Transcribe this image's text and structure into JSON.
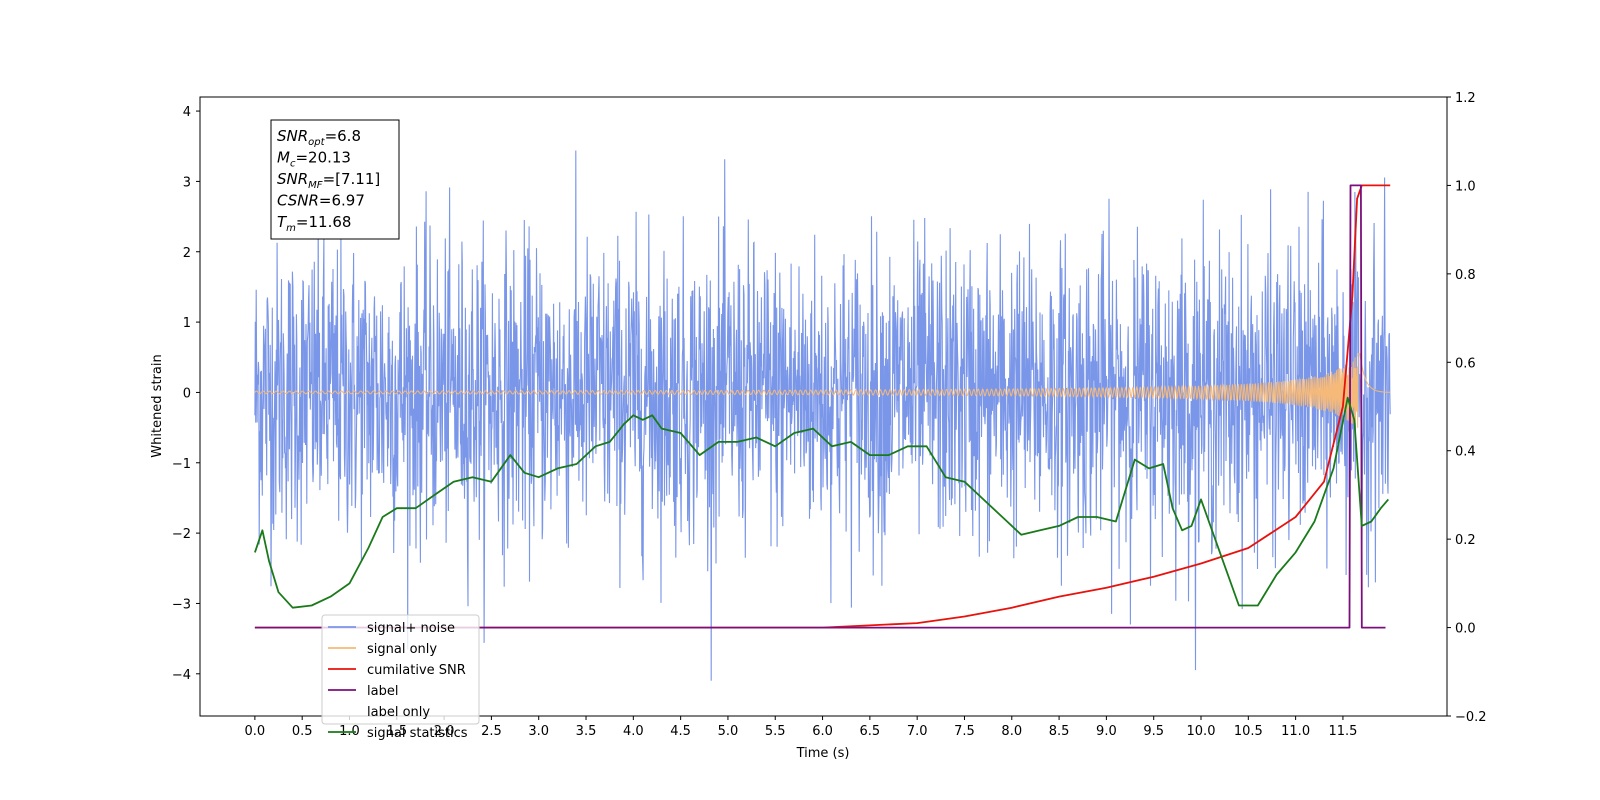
{
  "chart_data": {
    "type": "line",
    "xlabel": "Time (s)",
    "ylabel": "Whitened strain",
    "xlim": [
      -0.58,
      12.6
    ],
    "ylim": [
      -4.6,
      4.2
    ],
    "y2lim": [
      -0.2,
      1.2
    ],
    "x_ticks": [
      "0.0",
      "0.5",
      "1.0",
      "1.5",
      "2.0",
      "2.5",
      "3.0",
      "3.5",
      "4.0",
      "4.5",
      "5.0",
      "5.5",
      "6.0",
      "6.5",
      "7.0",
      "7.5",
      "8.0",
      "8.5",
      "9.0",
      "9.5",
      "10.0",
      "10.5",
      "11.0",
      "11.5"
    ],
    "y_ticks": [
      "4",
      "3",
      "2",
      "1",
      "0",
      "−1",
      "−2",
      "−3",
      "−4"
    ],
    "y2_ticks": [
      "1.2",
      "1.0",
      "0.8",
      "0.6",
      "0.4",
      "0.2",
      "0.0",
      "−0.2"
    ],
    "legend_position": "lower-left",
    "annotation": {
      "lines": [
        {
          "symbol": "SNR",
          "sub": "opt",
          "value": "=6.8"
        },
        {
          "symbol": "M",
          "sub": "c",
          "value": "=20.13"
        },
        {
          "symbol": "SNR",
          "sub": "MF",
          "value": "=[7.11]"
        },
        {
          "symbol": "CSNR",
          "sub": "",
          "value": "=6.97"
        },
        {
          "symbol": "T",
          "sub": "m",
          "value": "=11.68"
        }
      ]
    },
    "series": [
      {
        "name": "signal+ noise",
        "axis": "left",
        "color": "#7a96e8",
        "style": "dense noise, approx. gaussian, std ≈ 1.05, peaks to ±3.9",
        "x_range": [
          0.0,
          12.0
        ]
      },
      {
        "name": "signal only",
        "axis": "left",
        "color": "#f5b97a",
        "style": "chirp, amplitude grows to ≈ 0.6 near 11.6 s",
        "x_range": [
          0.0,
          12.0
        ]
      },
      {
        "name": "cumilative SNR",
        "axis": "right",
        "color": "#e8120c",
        "x": [
          0.0,
          6.0,
          7.0,
          7.5,
          8.0,
          8.5,
          9.0,
          9.5,
          10.0,
          10.5,
          11.0,
          11.3,
          11.5,
          11.6,
          11.65,
          11.7,
          12.0
        ],
        "values": [
          0.0,
          0.0,
          0.01,
          0.025,
          0.045,
          0.07,
          0.09,
          0.115,
          0.145,
          0.18,
          0.25,
          0.33,
          0.5,
          0.75,
          0.97,
          1.0,
          1.0
        ]
      },
      {
        "name": "label",
        "axis": "right",
        "color": "#7b0f7b",
        "x": [
          0.0,
          11.57,
          11.58,
          11.69,
          11.7,
          11.95
        ],
        "values": [
          0.0,
          0.0,
          1.0,
          1.0,
          0.0,
          0.0
        ]
      },
      {
        "name": "label only",
        "axis": "right",
        "color": "#7b0f7b",
        "hidden": true,
        "x": [],
        "values": []
      },
      {
        "name": "signal statistics",
        "axis": "right",
        "color": "#1a7a1a",
        "x": [
          0.0,
          0.08,
          0.15,
          0.25,
          0.4,
          0.6,
          0.8,
          1.0,
          1.2,
          1.35,
          1.5,
          1.7,
          1.9,
          2.1,
          2.3,
          2.5,
          2.7,
          2.85,
          3.0,
          3.2,
          3.4,
          3.6,
          3.75,
          3.9,
          4.0,
          4.1,
          4.2,
          4.3,
          4.5,
          4.7,
          4.9,
          5.1,
          5.3,
          5.5,
          5.7,
          5.9,
          6.1,
          6.3,
          6.5,
          6.7,
          6.9,
          7.1,
          7.3,
          7.5,
          7.7,
          7.9,
          8.1,
          8.3,
          8.5,
          8.7,
          8.9,
          9.1,
          9.3,
          9.45,
          9.6,
          9.7,
          9.8,
          9.9,
          10.0,
          10.2,
          10.4,
          10.6,
          10.8,
          11.0,
          11.2,
          11.4,
          11.55,
          11.62,
          11.7,
          11.8,
          11.9,
          11.98
        ],
        "values": [
          0.17,
          0.22,
          0.15,
          0.08,
          0.045,
          0.05,
          0.07,
          0.1,
          0.18,
          0.25,
          0.27,
          0.27,
          0.3,
          0.33,
          0.34,
          0.33,
          0.39,
          0.35,
          0.34,
          0.36,
          0.37,
          0.41,
          0.42,
          0.46,
          0.48,
          0.47,
          0.48,
          0.45,
          0.44,
          0.39,
          0.42,
          0.42,
          0.43,
          0.41,
          0.44,
          0.45,
          0.41,
          0.42,
          0.39,
          0.39,
          0.41,
          0.41,
          0.34,
          0.33,
          0.29,
          0.25,
          0.21,
          0.22,
          0.23,
          0.25,
          0.25,
          0.24,
          0.38,
          0.36,
          0.37,
          0.27,
          0.22,
          0.23,
          0.29,
          0.17,
          0.05,
          0.05,
          0.12,
          0.17,
          0.24,
          0.36,
          0.52,
          0.47,
          0.23,
          0.24,
          0.27,
          0.29
        ]
      }
    ]
  }
}
